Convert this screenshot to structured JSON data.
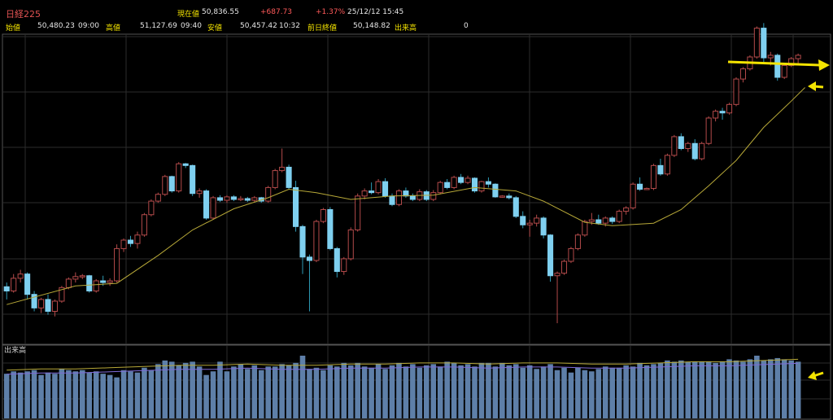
{
  "header": {
    "title": "日経225",
    "current_label": "現在値",
    "current_value": "50,836.55",
    "change": "+687.73",
    "change_pct": "+1.37%",
    "datetime": "25/12/12 15:45",
    "open_label": "始値",
    "open_value": "50,480.23",
    "open_time": "09:00",
    "high_label": "高値",
    "high_value": "51,127.69",
    "high_time": "09:40",
    "low_label": "安値",
    "low_value": "50,457.42",
    "low_time": "10:32",
    "prev_close_label": "前日終値",
    "prev_close_value": "50,148.82",
    "volume_label": "出来高",
    "volume_value": "0"
  },
  "chart_data": {
    "type": "candlestick",
    "volume_label": "出来高",
    "colors": {
      "up": "#6e2e2e",
      "down": "#7fd0f0",
      "ma": "#b7a838",
      "volume": "#5e7fa8",
      "annotation": "#f3e300",
      "grid": "#2c2c2c"
    },
    "ohlc": [
      [
        39850,
        39900,
        39700,
        39800
      ],
      [
        39800,
        40000,
        39780,
        39950
      ],
      [
        39950,
        40050,
        39900,
        40000
      ],
      [
        40000,
        40020,
        39700,
        39760
      ],
      [
        39760,
        39800,
        39560,
        39600
      ],
      [
        39600,
        39720,
        39540,
        39700
      ],
      [
        39700,
        39760,
        39520,
        39560
      ],
      [
        39560,
        39700,
        39500,
        39680
      ],
      [
        39680,
        39860,
        39660,
        39840
      ],
      [
        39840,
        39960,
        39820,
        39940
      ],
      [
        39940,
        40020,
        39900,
        39970
      ],
      [
        39970,
        40000,
        39940,
        39980
      ],
      [
        39980,
        39990,
        39780,
        39800
      ],
      [
        39800,
        39940,
        39780,
        39920
      ],
      [
        39920,
        39980,
        39860,
        39900
      ],
      [
        39900,
        39950,
        39860,
        39920
      ],
      [
        39920,
        40350,
        39900,
        40300
      ],
      [
        40300,
        40420,
        40260,
        40400
      ],
      [
        40400,
        40450,
        40320,
        40360
      ],
      [
        40360,
        40500,
        40300,
        40460
      ],
      [
        40460,
        40720,
        40440,
        40700
      ],
      [
        40700,
        40880,
        40680,
        40860
      ],
      [
        40860,
        40960,
        40840,
        40940
      ],
      [
        40940,
        41170,
        40920,
        41150
      ],
      [
        41150,
        41160,
        40960,
        40980
      ],
      [
        40980,
        41320,
        40960,
        41300
      ],
      [
        41300,
        41310,
        41250,
        41280
      ],
      [
        41280,
        41290,
        40920,
        40950
      ],
      [
        40950,
        41010,
        40900,
        40980
      ],
      [
        40980,
        41000,
        40640,
        40660
      ],
      [
        40660,
        40920,
        40640,
        40900
      ],
      [
        40900,
        40930,
        40850,
        40870
      ],
      [
        40870,
        40930,
        40840,
        40910
      ],
      [
        40910,
        40930,
        40860,
        40880
      ],
      [
        40880,
        40920,
        40860,
        40890
      ],
      [
        40890,
        40910,
        40850,
        40870
      ],
      [
        40870,
        40920,
        40850,
        40900
      ],
      [
        40900,
        40910,
        40840,
        40860
      ],
      [
        40860,
        41040,
        40840,
        41020
      ],
      [
        41020,
        41240,
        41000,
        41220
      ],
      [
        41220,
        41480,
        41200,
        41260
      ],
      [
        41260,
        41290,
        41000,
        41020
      ],
      [
        41020,
        41100,
        40500,
        40560
      ],
      [
        40560,
        40580,
        40000,
        40200
      ],
      [
        40200,
        40230,
        39560,
        40160
      ],
      [
        40160,
        40640,
        40140,
        40620
      ],
      [
        40620,
        40780,
        40600,
        40760
      ],
      [
        40760,
        40790,
        40280,
        40300
      ],
      [
        40300,
        40320,
        39960,
        40030
      ],
      [
        40030,
        40200,
        39990,
        40180
      ],
      [
        40180,
        40550,
        40160,
        40520
      ],
      [
        40520,
        40950,
        40500,
        40920
      ],
      [
        40920,
        41010,
        40880,
        40980
      ],
      [
        40980,
        41080,
        40940,
        40960
      ],
      [
        40960,
        41120,
        40940,
        41090
      ],
      [
        41090,
        41130,
        40900,
        40920
      ],
      [
        40920,
        40950,
        40800,
        40820
      ],
      [
        40820,
        41000,
        40800,
        40980
      ],
      [
        40980,
        41020,
        40900,
        40920
      ],
      [
        40920,
        40950,
        40860,
        40880
      ],
      [
        40880,
        41000,
        40860,
        40970
      ],
      [
        40970,
        40990,
        40860,
        40880
      ],
      [
        40880,
        40990,
        40860,
        40960
      ],
      [
        40960,
        41100,
        40940,
        41080
      ],
      [
        41080,
        41120,
        41000,
        41020
      ],
      [
        41020,
        41160,
        41000,
        41140
      ],
      [
        41140,
        41180,
        41060,
        41080
      ],
      [
        41080,
        41160,
        41060,
        41130
      ],
      [
        41130,
        41140,
        40960,
        40980
      ],
      [
        40980,
        41100,
        40960,
        41090
      ],
      [
        41090,
        41140,
        41020,
        41060
      ],
      [
        41060,
        41070,
        40900,
        40910
      ],
      [
        40910,
        40930,
        40900,
        40920
      ],
      [
        40920,
        40950,
        40880,
        40900
      ],
      [
        40900,
        40920,
        40660,
        40680
      ],
      [
        40680,
        40740,
        40540,
        40580
      ],
      [
        40580,
        40640,
        40440,
        40600
      ],
      [
        40600,
        40700,
        40560,
        40660
      ],
      [
        40660,
        40680,
        40420,
        40460
      ],
      [
        40460,
        40470,
        39910,
        39980
      ],
      [
        39980,
        40030,
        39420,
        40010
      ],
      [
        40010,
        40170,
        39990,
        40150
      ],
      [
        40150,
        40320,
        40130,
        40300
      ],
      [
        40300,
        40480,
        40280,
        40460
      ],
      [
        40460,
        40640,
        40440,
        40620
      ],
      [
        40620,
        40720,
        40580,
        40640
      ],
      [
        40640,
        40700,
        40580,
        40600
      ],
      [
        40600,
        40680,
        40560,
        40660
      ],
      [
        40660,
        40680,
        40590,
        40620
      ],
      [
        40620,
        40760,
        40600,
        40740
      ],
      [
        40740,
        40800,
        40700,
        40780
      ],
      [
        40780,
        41080,
        40760,
        41060
      ],
      [
        41060,
        41140,
        40980,
        41000
      ],
      [
        41000,
        41020,
        40990,
        41010
      ],
      [
        41010,
        41300,
        40990,
        41280
      ],
      [
        41280,
        41360,
        41160,
        41180
      ],
      [
        41180,
        41420,
        41160,
        41400
      ],
      [
        41400,
        41640,
        41380,
        41620
      ],
      [
        41620,
        41660,
        41460,
        41480
      ],
      [
        41480,
        41560,
        41440,
        41540
      ],
      [
        41540,
        41590,
        41340,
        41360
      ],
      [
        41360,
        41560,
        41340,
        41540
      ],
      [
        41540,
        41860,
        41520,
        41840
      ],
      [
        41840,
        41940,
        41800,
        41920
      ],
      [
        41920,
        41960,
        41820,
        41900
      ],
      [
        41900,
        42020,
        41880,
        42000
      ],
      [
        42000,
        42320,
        41980,
        42300
      ],
      [
        42300,
        42440,
        42260,
        42420
      ],
      [
        42420,
        42580,
        42400,
        42560
      ],
      [
        42560,
        42920,
        42540,
        42900
      ],
      [
        42900,
        42960,
        42480,
        42550
      ],
      [
        42550,
        42620,
        42460,
        42580
      ],
      [
        42580,
        42600,
        42280,
        42320
      ],
      [
        42320,
        42470,
        42300,
        42460
      ],
      [
        42460,
        42560,
        42440,
        42540
      ],
      [
        42540,
        42600,
        42460,
        42580
      ]
    ],
    "ma": [
      [
        0,
        39640
      ],
      [
        10,
        39860
      ],
      [
        16,
        39890
      ],
      [
        22,
        40220
      ],
      [
        27,
        40520
      ],
      [
        33,
        40770
      ],
      [
        38,
        40900
      ],
      [
        41,
        41000
      ],
      [
        45,
        40960
      ],
      [
        50,
        40880
      ],
      [
        56,
        40920
      ],
      [
        62,
        40930
      ],
      [
        68,
        41020
      ],
      [
        74,
        40980
      ],
      [
        78,
        40860
      ],
      [
        84,
        40610
      ],
      [
        88,
        40570
      ],
      [
        94,
        40600
      ],
      [
        98,
        40760
      ],
      [
        102,
        41040
      ],
      [
        106,
        41340
      ],
      [
        110,
        41730
      ],
      [
        114,
        42040
      ],
      [
        116,
        42200
      ]
    ],
    "volume": [
      3.7,
      3.9,
      3.8,
      3.9,
      4.0,
      3.6,
      3.8,
      3.7,
      4.1,
      4.0,
      3.9,
      4.0,
      3.8,
      3.9,
      3.7,
      3.6,
      3.4,
      4.0,
      3.9,
      3.8,
      4.2,
      4.0,
      4.5,
      4.8,
      4.7,
      4.4,
      4.6,
      4.7,
      4.3,
      3.6,
      3.9,
      4.7,
      3.9,
      4.3,
      4.5,
      4.1,
      4.4,
      4.0,
      4.3,
      4.3,
      4.5,
      4.4,
      4.6,
      5.2,
      4.1,
      4.2,
      4.0,
      4.4,
      4.3,
      4.6,
      4.4,
      4.6,
      4.3,
      4.2,
      4.5,
      4.1,
      4.4,
      4.6,
      4.3,
      4.5,
      4.2,
      4.4,
      4.5,
      4.3,
      4.7,
      4.6,
      4.4,
      4.5,
      4.3,
      4.6,
      4.6,
      4.3,
      4.6,
      4.4,
      4.5,
      4.2,
      4.4,
      4.1,
      4.3,
      4.5,
      4.0,
      4.2,
      3.8,
      4.2,
      4.0,
      3.9,
      4.1,
      4.3,
      4.2,
      4.2,
      4.4,
      4.3,
      4.6,
      4.4,
      4.5,
      4.6,
      4.8,
      4.7,
      4.8,
      4.7,
      4.7,
      4.7,
      4.7,
      4.6,
      4.7,
      4.9,
      4.8,
      4.7,
      4.9,
      5.2,
      4.8,
      4.9,
      5.0,
      4.9,
      4.8,
      4.7
    ],
    "volume_ma": [
      4.0,
      4.1,
      4.1,
      4.2,
      4.3,
      4.4,
      4.4,
      4.5,
      4.4,
      4.4,
      4.5,
      4.5,
      4.6,
      4.6,
      4.5,
      4.6,
      4.6,
      4.5,
      4.5,
      4.6,
      4.7,
      4.7,
      4.8,
      4.9
    ],
    "grid": true
  }
}
